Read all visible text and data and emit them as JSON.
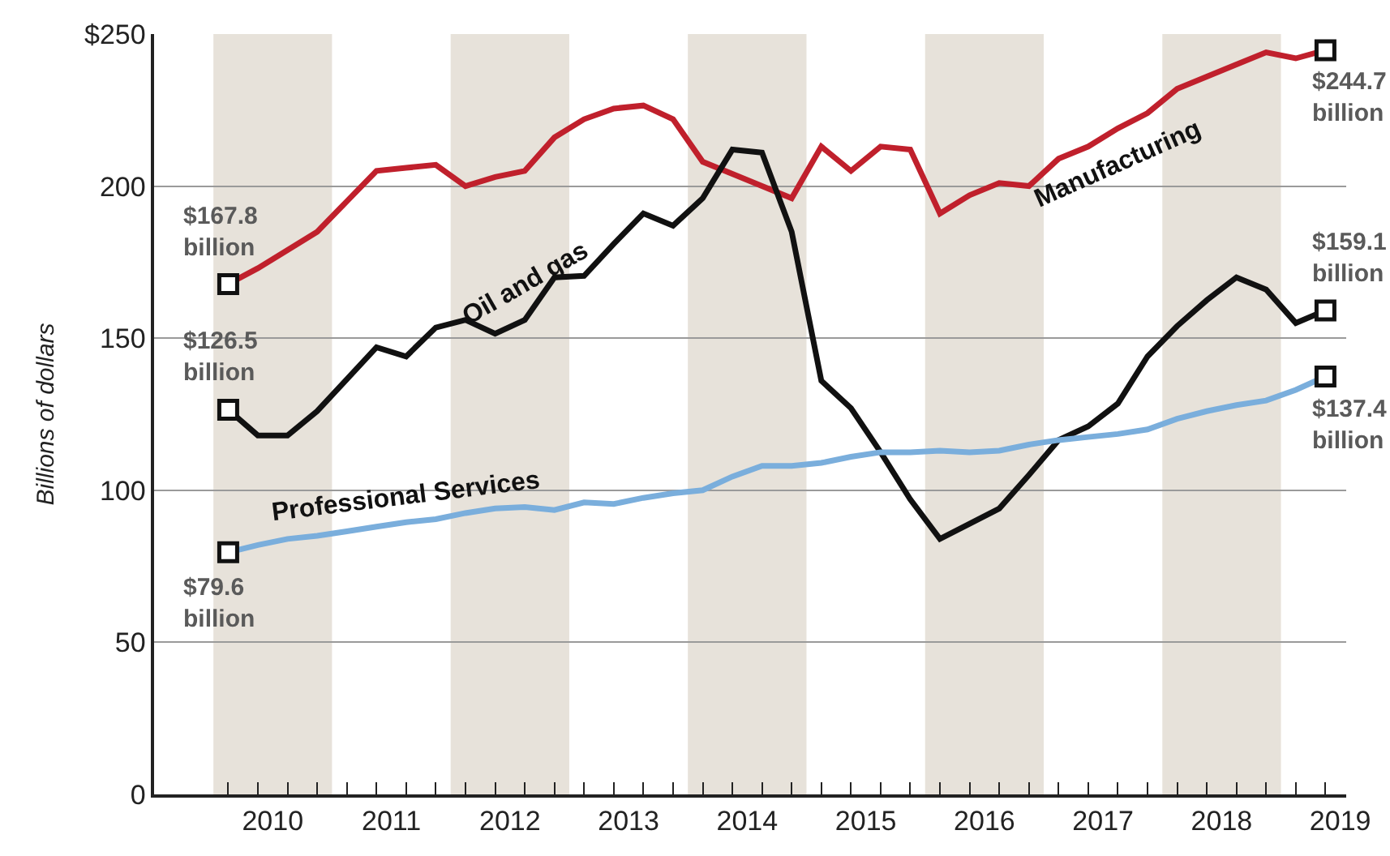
{
  "chart_data": {
    "type": "line",
    "ylabel": "Billions of dollars",
    "x": [
      2010.125,
      2010.375,
      2010.625,
      2010.875,
      2011.125,
      2011.375,
      2011.625,
      2011.875,
      2012.125,
      2012.375,
      2012.625,
      2012.875,
      2013.125,
      2013.375,
      2013.625,
      2013.875,
      2014.125,
      2014.375,
      2014.625,
      2014.875,
      2015.125,
      2015.375,
      2015.625,
      2015.875,
      2016.125,
      2016.375,
      2016.625,
      2016.875,
      2017.125,
      2017.375,
      2017.625,
      2017.875,
      2018.125,
      2018.375,
      2018.625,
      2018.875,
      2019.125,
      2019.375
    ],
    "series": [
      {
        "name": "Manufacturing",
        "color": "#c0202c",
        "values": [
          167.8,
          173,
          179,
          185,
          195,
          205,
          206,
          207,
          200,
          203,
          205,
          216,
          222,
          225.5,
          226.5,
          222,
          208,
          204,
          200,
          196,
          213,
          205,
          213,
          212,
          191,
          197,
          201,
          200,
          209,
          213,
          219,
          224,
          232,
          236,
          240,
          244,
          242,
          244.7
        ]
      },
      {
        "name": "Oil and gas",
        "color": "#111111",
        "values": [
          126.5,
          118,
          118,
          126,
          136.5,
          147,
          144,
          153.5,
          156,
          151.5,
          156,
          170,
          170.5,
          181,
          191,
          187,
          196,
          212,
          211,
          185,
          136,
          127,
          112.5,
          97,
          84,
          89,
          94,
          105,
          116.5,
          121,
          128.5,
          144,
          154,
          162.5,
          170,
          166,
          155,
          159.1
        ]
      },
      {
        "name": "Professional Services",
        "color": "#7aaedc",
        "values": [
          79.6,
          82,
          84,
          85,
          86.5,
          88,
          89.5,
          90.5,
          92.5,
          94,
          94.5,
          93.5,
          96,
          95.5,
          97.5,
          99,
          100,
          104.5,
          108,
          108,
          109,
          111,
          112.5,
          112.5,
          113,
          112.5,
          113,
          115,
          116.5,
          117.5,
          118.5,
          120,
          123.5,
          126,
          128,
          129.5,
          133,
          137.4
        ]
      }
    ],
    "annotations": [
      "$167.8 billion",
      "$126.5 billion",
      "$79.6 billion",
      "$244.7 billion",
      "$159.1 billion",
      "$137.4 billion"
    ],
    "bands": [
      {
        "axis": "x",
        "from": 2010,
        "to": 2011,
        "color": "#e7e2da"
      },
      {
        "axis": "x",
        "from": 2012,
        "to": 2013,
        "color": "#e7e2da"
      },
      {
        "axis": "x",
        "from": 2014,
        "to": 2015,
        "color": "#e7e2da"
      },
      {
        "axis": "x",
        "from": 2016,
        "to": 2017,
        "color": "#e7e2da"
      },
      {
        "axis": "x",
        "from": 2018,
        "to": 2019,
        "color": "#e7e2da"
      }
    ],
    "xlim": [
      2009.5,
      2019.55
    ],
    "xticks": [
      {
        "value": 2010.5,
        "label": "2010"
      },
      {
        "value": 2011.5,
        "label": "2011"
      },
      {
        "value": 2012.5,
        "label": "2012"
      },
      {
        "value": 2013.5,
        "label": "2013"
      },
      {
        "value": 2014.5,
        "label": "2014"
      },
      {
        "value": 2015.5,
        "label": "2015"
      },
      {
        "value": 2016.5,
        "label": "2016"
      },
      {
        "value": 2017.5,
        "label": "2017"
      },
      {
        "value": 2018.5,
        "label": "2018"
      },
      {
        "value": 2019.5,
        "label": "2019"
      },
      {
        "value": 2010.125,
        "label": null
      },
      {
        "value": 2010.375,
        "label": null
      },
      {
        "value": 2010.625,
        "label": null
      },
      {
        "value": 2010.875,
        "label": null
      },
      {
        "value": 2011.125,
        "label": null
      },
      {
        "value": 2011.375,
        "label": null
      },
      {
        "value": 2011.625,
        "label": null
      },
      {
        "value": 2011.875,
        "label": null
      },
      {
        "value": 2012.125,
        "label": null
      },
      {
        "value": 2012.375,
        "label": null
      },
      {
        "value": 2012.625,
        "label": null
      },
      {
        "value": 2012.875,
        "label": null
      },
      {
        "value": 2013.125,
        "label": null
      },
      {
        "value": 2013.375,
        "label": null
      },
      {
        "value": 2013.625,
        "label": null
      },
      {
        "value": 2013.875,
        "label": null
      },
      {
        "value": 2014.125,
        "label": null
      },
      {
        "value": 2014.375,
        "label": null
      },
      {
        "value": 2014.625,
        "label": null
      },
      {
        "value": 2014.875,
        "label": null
      },
      {
        "value": 2015.125,
        "label": null
      },
      {
        "value": 2015.375,
        "label": null
      },
      {
        "value": 2015.625,
        "label": null
      },
      {
        "value": 2015.875,
        "label": null
      },
      {
        "value": 2016.125,
        "label": null
      },
      {
        "value": 2016.375,
        "label": null
      },
      {
        "value": 2016.625,
        "label": null
      },
      {
        "value": 2016.875,
        "label": null
      },
      {
        "value": 2017.125,
        "label": null
      },
      {
        "value": 2017.375,
        "label": null
      },
      {
        "value": 2017.625,
        "label": null
      },
      {
        "value": 2017.875,
        "label": null
      },
      {
        "value": 2018.125,
        "label": null
      },
      {
        "value": 2018.375,
        "label": null
      },
      {
        "value": 2018.625,
        "label": null
      },
      {
        "value": 2018.875,
        "label": null
      },
      {
        "value": 2019.125,
        "label": null
      },
      {
        "value": 2019.375,
        "label": null
      }
    ],
    "ylim": [
      0,
      250
    ],
    "yticks": [
      0,
      50,
      100,
      150,
      200,
      {
        "value": 250,
        "label": "$250"
      }
    ],
    "grid": "y",
    "legend": false,
    "marker": "none",
    "line_style": "solid"
  }
}
